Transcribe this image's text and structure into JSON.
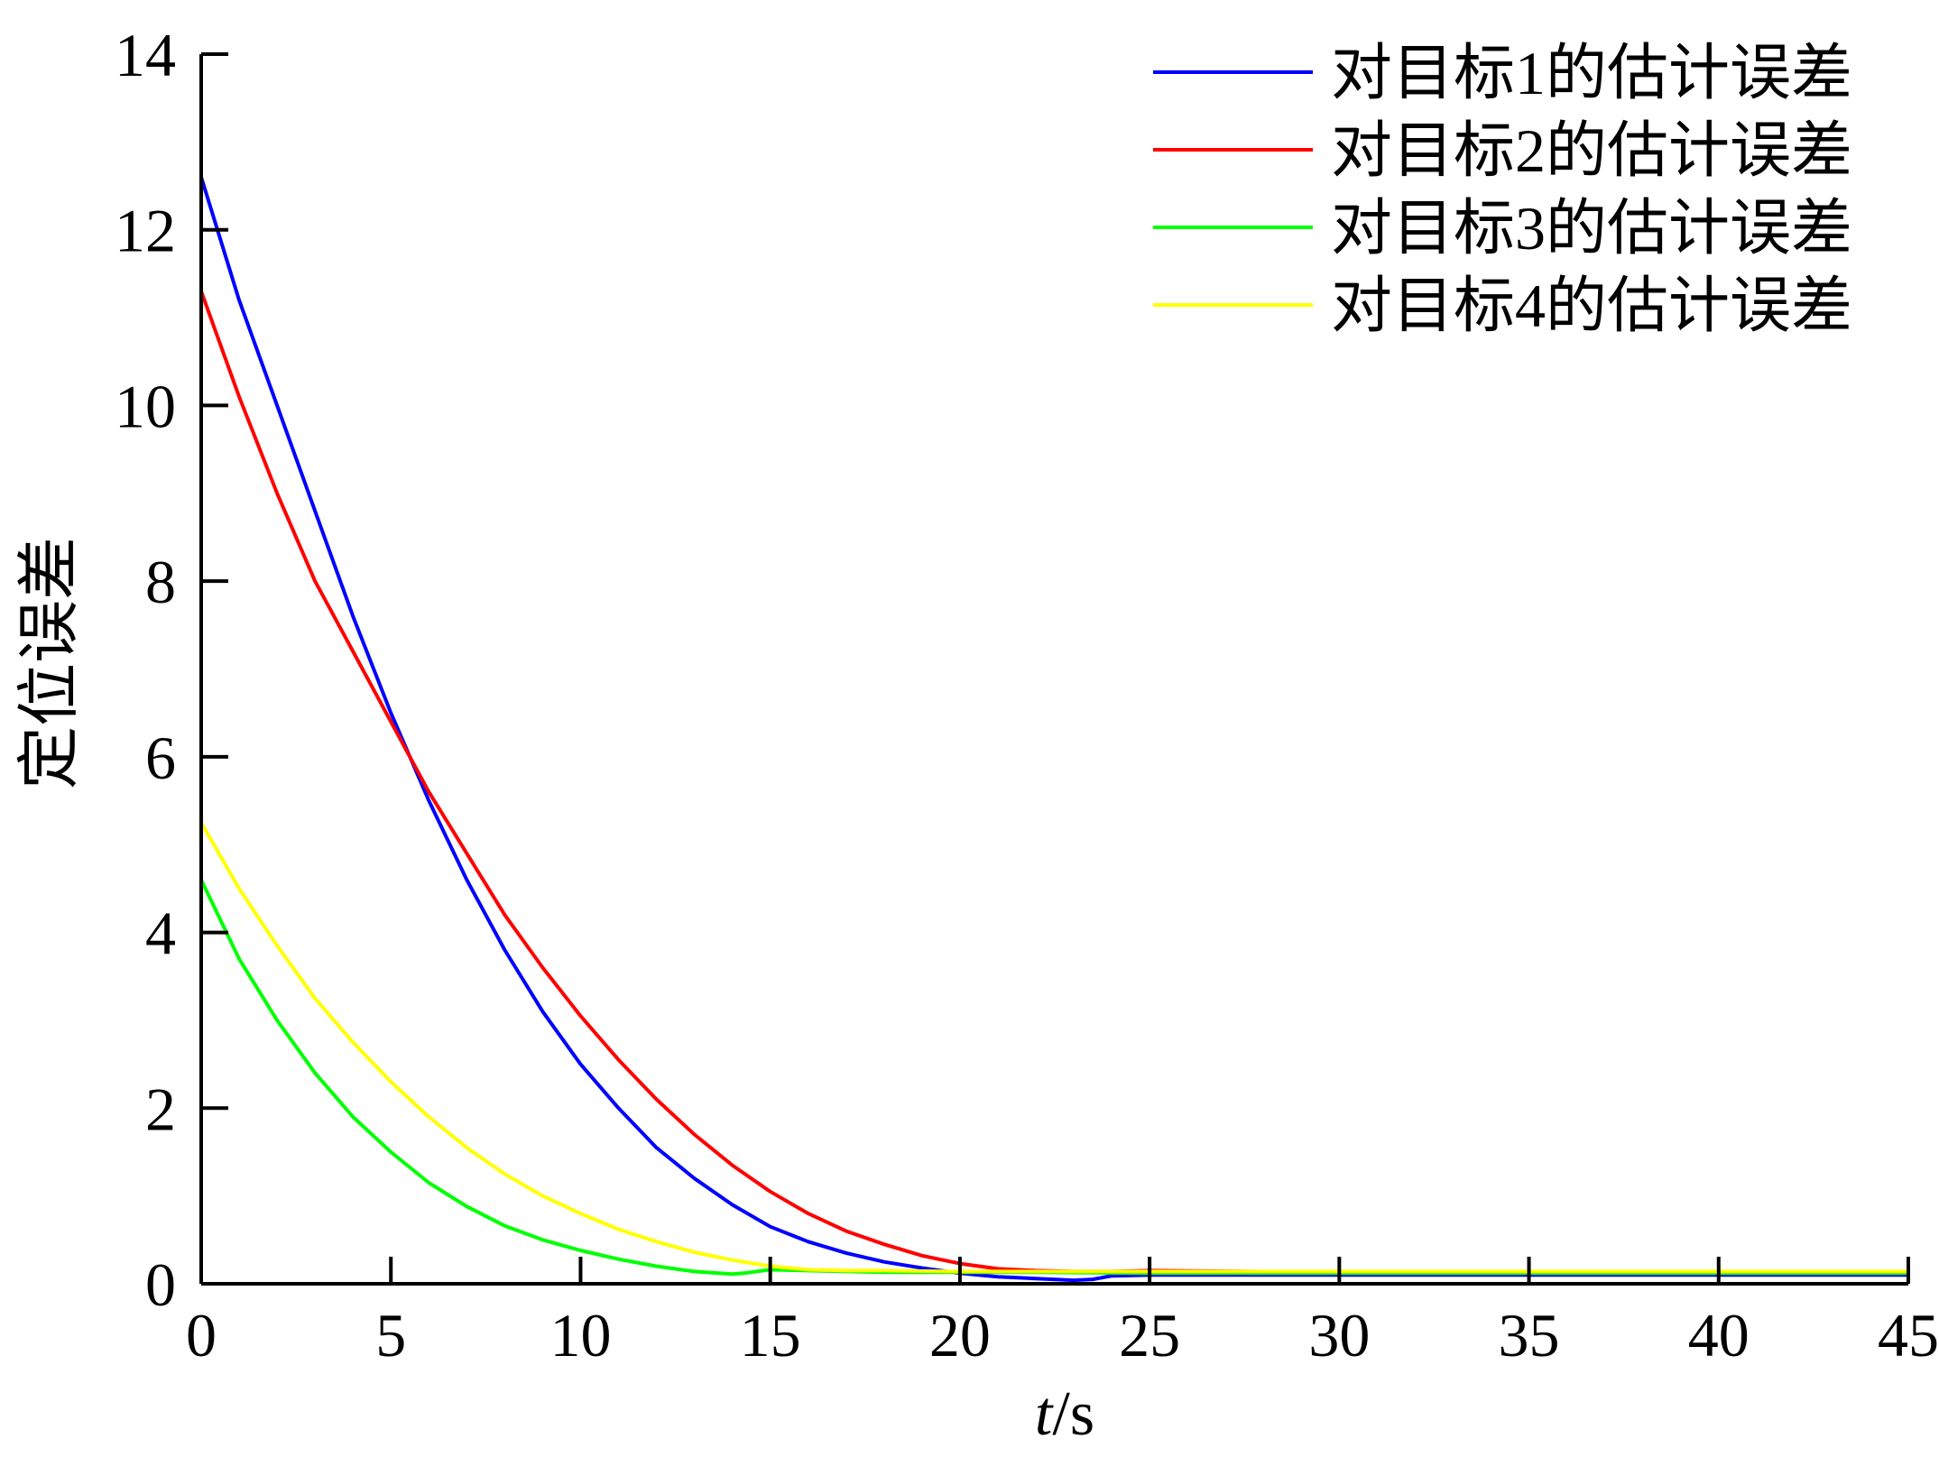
{
  "chart_data": {
    "type": "line",
    "title": "",
    "xlabel_italic": "t",
    "xlabel_suffix": "/s",
    "ylabel": "定位误差",
    "xlim": [
      0,
      45
    ],
    "ylim": [
      0,
      14
    ],
    "xticks": [
      0,
      5,
      10,
      15,
      20,
      25,
      30,
      35,
      40,
      45
    ],
    "yticks": [
      0,
      2,
      4,
      6,
      8,
      10,
      12,
      14
    ],
    "grid": false,
    "legend_position": "top-right",
    "series": [
      {
        "name": "对目标1的估计误差",
        "color": "#0000ff",
        "points": [
          [
            0,
            12.6
          ],
          [
            1,
            11.2
          ],
          [
            2,
            10.0
          ],
          [
            3,
            8.8
          ],
          [
            4,
            7.6
          ],
          [
            5,
            6.5
          ],
          [
            6,
            5.5
          ],
          [
            7,
            4.6
          ],
          [
            8,
            3.8
          ],
          [
            9,
            3.1
          ],
          [
            10,
            2.5
          ],
          [
            11,
            2.0
          ],
          [
            12,
            1.55
          ],
          [
            13,
            1.2
          ],
          [
            14,
            0.9
          ],
          [
            15,
            0.65
          ],
          [
            16,
            0.48
          ],
          [
            17,
            0.35
          ],
          [
            18,
            0.25
          ],
          [
            19,
            0.18
          ],
          [
            20,
            0.12
          ],
          [
            21,
            0.08
          ],
          [
            22,
            0.06
          ],
          [
            23,
            0.04
          ],
          [
            23.5,
            0.05
          ],
          [
            24,
            0.09
          ],
          [
            25,
            0.1
          ],
          [
            30,
            0.1
          ],
          [
            35,
            0.1
          ],
          [
            40,
            0.1
          ],
          [
            45,
            0.1
          ]
        ]
      },
      {
        "name": "对目标2的估计误差",
        "color": "#ff0000",
        "points": [
          [
            0,
            11.3
          ],
          [
            1,
            10.1
          ],
          [
            2,
            9.0
          ],
          [
            3,
            8.0
          ],
          [
            4,
            7.2
          ],
          [
            5,
            6.4
          ],
          [
            6,
            5.6
          ],
          [
            7,
            4.9
          ],
          [
            8,
            4.2
          ],
          [
            9,
            3.6
          ],
          [
            10,
            3.05
          ],
          [
            11,
            2.55
          ],
          [
            12,
            2.1
          ],
          [
            13,
            1.7
          ],
          [
            14,
            1.35
          ],
          [
            15,
            1.05
          ],
          [
            16,
            0.8
          ],
          [
            17,
            0.6
          ],
          [
            18,
            0.45
          ],
          [
            19,
            0.32
          ],
          [
            20,
            0.23
          ],
          [
            21,
            0.17
          ],
          [
            22,
            0.15
          ],
          [
            23,
            0.14
          ],
          [
            24,
            0.14
          ],
          [
            25,
            0.15
          ],
          [
            30,
            0.13
          ],
          [
            35,
            0.13
          ],
          [
            40,
            0.13
          ],
          [
            45,
            0.13
          ]
        ]
      },
      {
        "name": "对目标3的估计误差",
        "color": "#00ff00",
        "points": [
          [
            0,
            4.6
          ],
          [
            1,
            3.7
          ],
          [
            2,
            3.0
          ],
          [
            3,
            2.4
          ],
          [
            4,
            1.9
          ],
          [
            5,
            1.5
          ],
          [
            6,
            1.15
          ],
          [
            7,
            0.88
          ],
          [
            8,
            0.66
          ],
          [
            9,
            0.5
          ],
          [
            10,
            0.38
          ],
          [
            11,
            0.28
          ],
          [
            12,
            0.2
          ],
          [
            13,
            0.14
          ],
          [
            14,
            0.11
          ],
          [
            14.3,
            0.12
          ],
          [
            15,
            0.16
          ],
          [
            16,
            0.15
          ],
          [
            18,
            0.13
          ],
          [
            20,
            0.13
          ],
          [
            22,
            0.13
          ],
          [
            25,
            0.12
          ],
          [
            30,
            0.12
          ],
          [
            35,
            0.12
          ],
          [
            40,
            0.12
          ],
          [
            45,
            0.12
          ]
        ]
      },
      {
        "name": "对目标4的估计误差",
        "color": "#ffff00",
        "points": [
          [
            0,
            5.25
          ],
          [
            1,
            4.5
          ],
          [
            2,
            3.85
          ],
          [
            3,
            3.25
          ],
          [
            4,
            2.75
          ],
          [
            5,
            2.3
          ],
          [
            6,
            1.9
          ],
          [
            7,
            1.55
          ],
          [
            8,
            1.25
          ],
          [
            9,
            1.0
          ],
          [
            10,
            0.8
          ],
          [
            11,
            0.62
          ],
          [
            12,
            0.48
          ],
          [
            13,
            0.36
          ],
          [
            14,
            0.27
          ],
          [
            15,
            0.2
          ],
          [
            16,
            0.16
          ],
          [
            17,
            0.15
          ],
          [
            18,
            0.15
          ],
          [
            20,
            0.14
          ],
          [
            22,
            0.14
          ],
          [
            25,
            0.14
          ],
          [
            30,
            0.14
          ],
          [
            35,
            0.14
          ],
          [
            40,
            0.14
          ],
          [
            45,
            0.14
          ]
        ]
      }
    ]
  }
}
